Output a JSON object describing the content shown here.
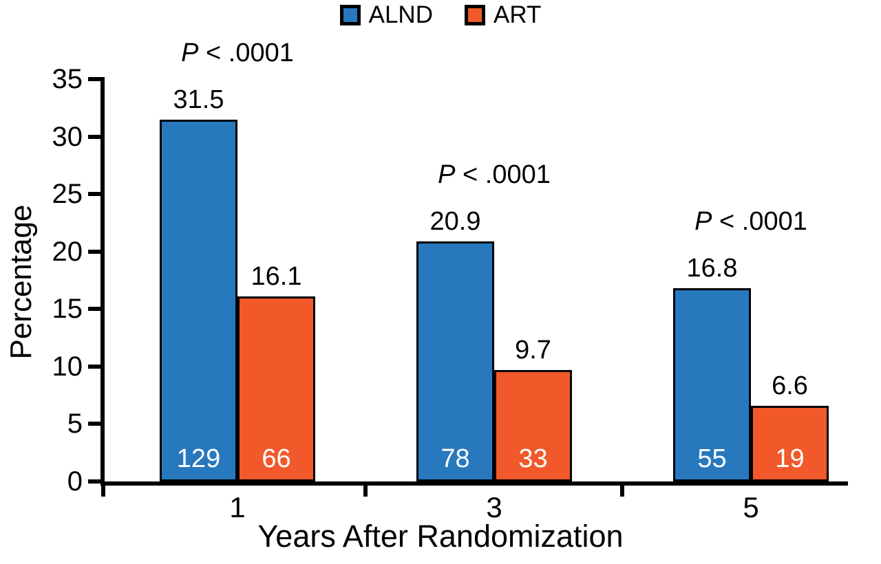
{
  "legend": [
    {
      "label": "ALND",
      "color": "#2878BE"
    },
    {
      "label": "ART",
      "color": "#F1592A"
    }
  ],
  "chart_data": {
    "type": "bar",
    "categories": [
      "1",
      "3",
      "5"
    ],
    "series": [
      {
        "name": "ALND",
        "color": "#2878BE",
        "values": [
          31.5,
          20.9,
          16.8
        ],
        "counts": [
          129,
          78,
          55
        ]
      },
      {
        "name": "ART",
        "color": "#F1592A",
        "values": [
          16.1,
          9.7,
          6.6
        ],
        "counts": [
          66,
          33,
          19
        ]
      }
    ],
    "p_values": [
      "P < .0001",
      "P < .0001",
      "P < .0001"
    ],
    "title": "",
    "xlabel": "Years After Randomization",
    "ylabel": "Percentage",
    "ylim": [
      0,
      35
    ],
    "y_ticks": [
      0,
      5,
      10,
      15,
      20,
      25,
      30,
      35
    ],
    "grid": "off",
    "legend_position": "top-center"
  }
}
